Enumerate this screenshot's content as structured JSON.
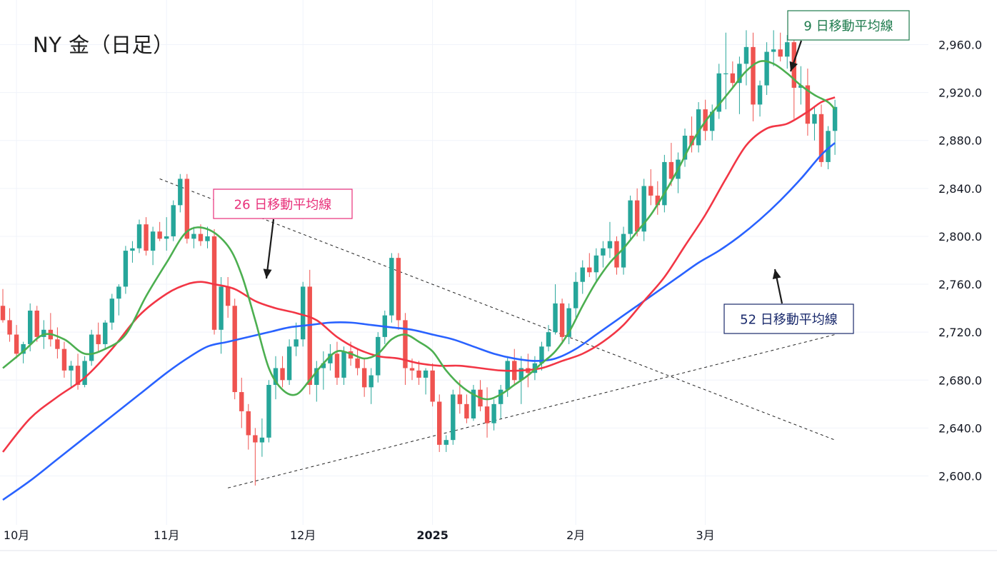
{
  "chart_data": {
    "type": "candlestick",
    "title": "NY 金（日足）",
    "ylim": [
      2575,
      2985
    ],
    "y_ticks": [
      2600,
      2640,
      2680,
      2720,
      2760,
      2800,
      2840,
      2880,
      2920,
      2960
    ],
    "y_tick_labels": [
      "2,600.0",
      "2,640.0",
      "2,680.0",
      "2,720.0",
      "2,760.0",
      "2,800.0",
      "2,840.0",
      "2,880.0",
      "2,920.0",
      "2,960.0"
    ],
    "x_labels": [
      {
        "label": "10月",
        "idx": 2
      },
      {
        "label": "11月",
        "idx": 24
      },
      {
        "label": "12月",
        "idx": 44
      },
      {
        "label": "2025",
        "idx": 63
      },
      {
        "label": "2月",
        "idx": 84
      },
      {
        "label": "3月",
        "idx": 103
      }
    ],
    "colors": {
      "up": "#26a69a",
      "down": "#ef5350",
      "ma9": "#4caf50",
      "ma26": "#f23645",
      "ma52": "#2962ff",
      "grid": "#f0f3fa",
      "axis_text": "#131722"
    },
    "legend_boxes": [
      {
        "text": "9 日移動平均線",
        "series": "ma9",
        "color": "#1e7b4d"
      },
      {
        "text": "26 日移動平均線",
        "series": "ma26",
        "color": "#e8307a"
      },
      {
        "text": "52 日移動平均線",
        "series": "ma52",
        "color": "#1a2a6c"
      }
    ],
    "trendlines": [
      {
        "name": "resistance",
        "from": {
          "idx": 23,
          "price": 2848
        },
        "to": {
          "idx": 122,
          "price": 2630
        }
      },
      {
        "name": "support",
        "from": {
          "idx": 33,
          "price": 2590
        },
        "to": {
          "idx": 122,
          "price": 2718
        }
      }
    ],
    "candles": [
      [
        2742,
        2756,
        2728,
        2730
      ],
      [
        2730,
        2740,
        2712,
        2718
      ],
      [
        2718,
        2726,
        2698,
        2702
      ],
      [
        2702,
        2712,
        2694,
        2710
      ],
      [
        2710,
        2744,
        2704,
        2738
      ],
      [
        2738,
        2742,
        2712,
        2716
      ],
      [
        2716,
        2730,
        2706,
        2722
      ],
      [
        2722,
        2736,
        2708,
        2714
      ],
      [
        2714,
        2724,
        2698,
        2706
      ],
      [
        2706,
        2712,
        2682,
        2688
      ],
      [
        2688,
        2696,
        2674,
        2692
      ],
      [
        2692,
        2702,
        2672,
        2676
      ],
      [
        2676,
        2700,
        2674,
        2696
      ],
      [
        2696,
        2722,
        2692,
        2718
      ],
      [
        2718,
        2728,
        2704,
        2710
      ],
      [
        2710,
        2730,
        2706,
        2728
      ],
      [
        2728,
        2752,
        2722,
        2748
      ],
      [
        2748,
        2760,
        2734,
        2758
      ],
      [
        2758,
        2792,
        2752,
        2788
      ],
      [
        2788,
        2796,
        2778,
        2790
      ],
      [
        2790,
        2814,
        2786,
        2810
      ],
      [
        2810,
        2816,
        2784,
        2788
      ],
      [
        2788,
        2808,
        2776,
        2804
      ],
      [
        2804,
        2812,
        2796,
        2798
      ],
      [
        2798,
        2816,
        2788,
        2800
      ],
      [
        2800,
        2830,
        2796,
        2826
      ],
      [
        2826,
        2852,
        2820,
        2848
      ],
      [
        2848,
        2852,
        2794,
        2798
      ],
      [
        2798,
        2808,
        2790,
        2802
      ],
      [
        2802,
        2810,
        2792,
        2796
      ],
      [
        2796,
        2808,
        2790,
        2800
      ],
      [
        2800,
        2806,
        2718,
        2722
      ],
      [
        2722,
        2766,
        2702,
        2758
      ],
      [
        2758,
        2766,
        2732,
        2742
      ],
      [
        2742,
        2748,
        2664,
        2670
      ],
      [
        2670,
        2682,
        2640,
        2654
      ],
      [
        2654,
        2660,
        2622,
        2634
      ],
      [
        2634,
        2640,
        2592,
        2628
      ],
      [
        2628,
        2648,
        2616,
        2632
      ],
      [
        2632,
        2680,
        2628,
        2676
      ],
      [
        2676,
        2700,
        2664,
        2690
      ],
      [
        2690,
        2700,
        2674,
        2680
      ],
      [
        2680,
        2714,
        2676,
        2708
      ],
      [
        2708,
        2728,
        2700,
        2714
      ],
      [
        2714,
        2762,
        2708,
        2758
      ],
      [
        2758,
        2772,
        2668,
        2676
      ],
      [
        2676,
        2696,
        2662,
        2690
      ],
      [
        2690,
        2704,
        2672,
        2694
      ],
      [
        2694,
        2710,
        2688,
        2702
      ],
      [
        2702,
        2712,
        2676,
        2682
      ],
      [
        2682,
        2708,
        2676,
        2704
      ],
      [
        2704,
        2712,
        2692,
        2698
      ],
      [
        2698,
        2706,
        2684,
        2690
      ],
      [
        2690,
        2698,
        2666,
        2674
      ],
      [
        2674,
        2690,
        2660,
        2684
      ],
      [
        2684,
        2720,
        2678,
        2716
      ],
      [
        2716,
        2738,
        2710,
        2734
      ],
      [
        2734,
        2786,
        2728,
        2782
      ],
      [
        2782,
        2786,
        2722,
        2730
      ],
      [
        2730,
        2736,
        2676,
        2690
      ],
      [
        2690,
        2698,
        2680,
        2688
      ],
      [
        2688,
        2696,
        2676,
        2682
      ],
      [
        2682,
        2690,
        2668,
        2688
      ],
      [
        2688,
        2694,
        2658,
        2662
      ],
      [
        2662,
        2668,
        2620,
        2626
      ],
      [
        2626,
        2634,
        2620,
        2630
      ],
      [
        2630,
        2672,
        2626,
        2668
      ],
      [
        2668,
        2680,
        2652,
        2660
      ],
      [
        2660,
        2668,
        2644,
        2648
      ],
      [
        2648,
        2676,
        2646,
        2672
      ],
      [
        2672,
        2680,
        2654,
        2658
      ],
      [
        2658,
        2674,
        2632,
        2644
      ],
      [
        2644,
        2664,
        2638,
        2660
      ],
      [
        2660,
        2676,
        2648,
        2672
      ],
      [
        2672,
        2700,
        2666,
        2696
      ],
      [
        2696,
        2706,
        2676,
        2680
      ],
      [
        2680,
        2700,
        2660,
        2690
      ],
      [
        2690,
        2702,
        2674,
        2686
      ],
      [
        2686,
        2700,
        2680,
        2694
      ],
      [
        2694,
        2712,
        2688,
        2708
      ],
      [
        2708,
        2726,
        2704,
        2720
      ],
      [
        2720,
        2760,
        2718,
        2744
      ],
      [
        2744,
        2748,
        2710,
        2716
      ],
      [
        2716,
        2744,
        2710,
        2740
      ],
      [
        2740,
        2770,
        2732,
        2762
      ],
      [
        2762,
        2780,
        2752,
        2774
      ],
      [
        2774,
        2786,
        2766,
        2770
      ],
      [
        2770,
        2790,
        2762,
        2784
      ],
      [
        2784,
        2796,
        2774,
        2790
      ],
      [
        2790,
        2812,
        2782,
        2796
      ],
      [
        2796,
        2800,
        2768,
        2774
      ],
      [
        2774,
        2808,
        2768,
        2802
      ],
      [
        2802,
        2834,
        2796,
        2830
      ],
      [
        2830,
        2840,
        2800,
        2804
      ],
      [
        2804,
        2848,
        2796,
        2842
      ],
      [
        2842,
        2856,
        2826,
        2834
      ],
      [
        2834,
        2846,
        2818,
        2826
      ],
      [
        2826,
        2868,
        2820,
        2862
      ],
      [
        2862,
        2878,
        2842,
        2848
      ],
      [
        2848,
        2870,
        2836,
        2864
      ],
      [
        2864,
        2890,
        2858,
        2884
      ],
      [
        2884,
        2900,
        2870,
        2876
      ],
      [
        2876,
        2912,
        2870,
        2906
      ],
      [
        2906,
        2914,
        2880,
        2888
      ],
      [
        2888,
        2910,
        2880,
        2904
      ],
      [
        2904,
        2944,
        2898,
        2936
      ],
      [
        2936,
        2970,
        2906,
        2936
      ],
      [
        2936,
        2946,
        2924,
        2928
      ],
      [
        2928,
        2950,
        2902,
        2944
      ],
      [
        2944,
        2972,
        2926,
        2958
      ],
      [
        2958,
        2970,
        2896,
        2910
      ],
      [
        2910,
        2930,
        2900,
        2926
      ],
      [
        2926,
        2962,
        2918,
        2954
      ],
      [
        2954,
        2972,
        2942,
        2956
      ],
      [
        2956,
        2970,
        2946,
        2950
      ],
      [
        2950,
        2968,
        2940,
        2962
      ],
      [
        2962,
        2966,
        2898,
        2924
      ],
      [
        2924,
        2942,
        2910,
        2926
      ],
      [
        2926,
        2940,
        2884,
        2894
      ],
      [
        2894,
        2908,
        2880,
        2902
      ],
      [
        2902,
        2910,
        2858,
        2862
      ],
      [
        2862,
        2892,
        2856,
        2888
      ],
      [
        2888,
        2914,
        2868,
        2908
      ]
    ],
    "ma9": [
      [
        0,
        2690
      ],
      [
        3,
        2704
      ],
      [
        6,
        2718
      ],
      [
        9,
        2714
      ],
      [
        12,
        2702
      ],
      [
        15,
        2706
      ],
      [
        18,
        2718
      ],
      [
        21,
        2750
      ],
      [
        24,
        2778
      ],
      [
        27,
        2804
      ],
      [
        30,
        2806
      ],
      [
        33,
        2792
      ],
      [
        35,
        2768
      ],
      [
        37,
        2730
      ],
      [
        39,
        2690
      ],
      [
        41,
        2672
      ],
      [
        43,
        2668
      ],
      [
        45,
        2680
      ],
      [
        47,
        2694
      ],
      [
        49,
        2704
      ],
      [
        51,
        2702
      ],
      [
        53,
        2698
      ],
      [
        55,
        2702
      ],
      [
        57,
        2714
      ],
      [
        59,
        2718
      ],
      [
        61,
        2712
      ],
      [
        63,
        2704
      ],
      [
        65,
        2688
      ],
      [
        67,
        2676
      ],
      [
        69,
        2668
      ],
      [
        71,
        2664
      ],
      [
        73,
        2668
      ],
      [
        75,
        2676
      ],
      [
        77,
        2684
      ],
      [
        79,
        2694
      ],
      [
        81,
        2704
      ],
      [
        83,
        2720
      ],
      [
        85,
        2742
      ],
      [
        87,
        2762
      ],
      [
        89,
        2778
      ],
      [
        91,
        2790
      ],
      [
        93,
        2804
      ],
      [
        95,
        2818
      ],
      [
        97,
        2836
      ],
      [
        99,
        2856
      ],
      [
        101,
        2878
      ],
      [
        103,
        2896
      ],
      [
        105,
        2910
      ],
      [
        107,
        2924
      ],
      [
        109,
        2938
      ],
      [
        111,
        2946
      ],
      [
        113,
        2944
      ],
      [
        115,
        2936
      ],
      [
        117,
        2926
      ],
      [
        119,
        2918
      ],
      [
        121,
        2912
      ],
      [
        122,
        2906
      ]
    ],
    "ma26": [
      [
        0,
        2620
      ],
      [
        4,
        2648
      ],
      [
        8,
        2666
      ],
      [
        12,
        2682
      ],
      [
        16,
        2706
      ],
      [
        20,
        2734
      ],
      [
        24,
        2752
      ],
      [
        27,
        2760
      ],
      [
        29,
        2762
      ],
      [
        31,
        2760
      ],
      [
        34,
        2756
      ],
      [
        37,
        2746
      ],
      [
        40,
        2740
      ],
      [
        43,
        2736
      ],
      [
        46,
        2730
      ],
      [
        49,
        2716
      ],
      [
        52,
        2706
      ],
      [
        55,
        2700
      ],
      [
        58,
        2698
      ],
      [
        61,
        2694
      ],
      [
        64,
        2692
      ],
      [
        67,
        2692
      ],
      [
        70,
        2690
      ],
      [
        73,
        2688
      ],
      [
        76,
        2688
      ],
      [
        79,
        2690
      ],
      [
        82,
        2696
      ],
      [
        85,
        2702
      ],
      [
        88,
        2712
      ],
      [
        91,
        2726
      ],
      [
        94,
        2746
      ],
      [
        97,
        2766
      ],
      [
        100,
        2792
      ],
      [
        103,
        2818
      ],
      [
        106,
        2848
      ],
      [
        109,
        2876
      ],
      [
        112,
        2890
      ],
      [
        115,
        2894
      ],
      [
        118,
        2904
      ],
      [
        120,
        2912
      ],
      [
        122,
        2916
      ]
    ],
    "ma52": [
      [
        0,
        2580
      ],
      [
        4,
        2596
      ],
      [
        8,
        2614
      ],
      [
        12,
        2632
      ],
      [
        16,
        2650
      ],
      [
        20,
        2668
      ],
      [
        24,
        2686
      ],
      [
        27,
        2698
      ],
      [
        30,
        2708
      ],
      [
        33,
        2712
      ],
      [
        36,
        2716
      ],
      [
        39,
        2720
      ],
      [
        42,
        2724
      ],
      [
        45,
        2726
      ],
      [
        48,
        2728
      ],
      [
        51,
        2728
      ],
      [
        54,
        2726
      ],
      [
        57,
        2724
      ],
      [
        60,
        2722
      ],
      [
        63,
        2718
      ],
      [
        66,
        2714
      ],
      [
        69,
        2708
      ],
      [
        72,
        2702
      ],
      [
        75,
        2698
      ],
      [
        78,
        2696
      ],
      [
        81,
        2698
      ],
      [
        84,
        2706
      ],
      [
        87,
        2718
      ],
      [
        90,
        2730
      ],
      [
        93,
        2742
      ],
      [
        96,
        2754
      ],
      [
        99,
        2766
      ],
      [
        102,
        2778
      ],
      [
        105,
        2788
      ],
      [
        108,
        2800
      ],
      [
        111,
        2814
      ],
      [
        114,
        2830
      ],
      [
        117,
        2848
      ],
      [
        120,
        2868
      ],
      [
        122,
        2878
      ]
    ]
  }
}
